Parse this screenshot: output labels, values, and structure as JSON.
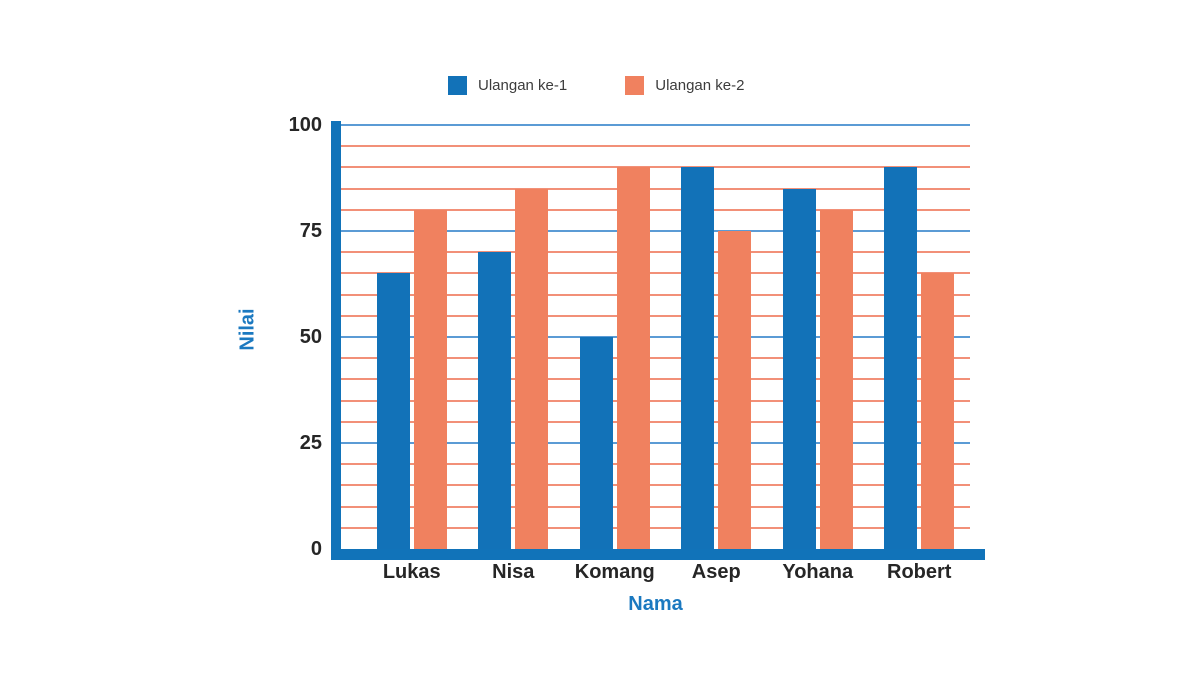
{
  "colors": {
    "series1": "#1272b8",
    "series2": "#f0815f",
    "grid_major": "#5b9bd5",
    "grid_minor": "#f29078",
    "axis": "#1173b9",
    "axis_title": "#1b79c0",
    "tick_text": "#262626",
    "legend_text": "#3c3c3c"
  },
  "chart_data": {
    "type": "bar",
    "title": "",
    "categories": [
      "Lukas",
      "Nisa",
      "Komang",
      "Asep",
      "Yohana",
      "Robert"
    ],
    "series": [
      {
        "name": "Ulangan ke-1",
        "color_key": "series1",
        "values": [
          65,
          70,
          50,
          90,
          85,
          90
        ]
      },
      {
        "name": "Ulangan ke-2",
        "color_key": "series2",
        "values": [
          80,
          85,
          90,
          75,
          80,
          65
        ]
      }
    ],
    "xlabel": "Nama",
    "ylabel": "Nilai",
    "ylim": [
      0,
      100
    ],
    "yticks": [
      0,
      25,
      50,
      75,
      100
    ],
    "grid_step": 5,
    "grid_on": true,
    "legend_position": "top"
  }
}
